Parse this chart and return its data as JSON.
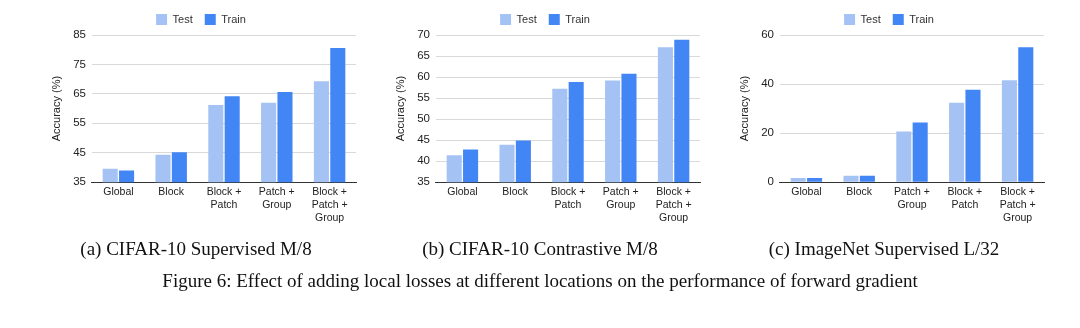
{
  "chart_data": [
    {
      "type": "bar",
      "ylabel": "Accuracy (%)",
      "categories": [
        "Global",
        "Block",
        "Block + Patch",
        "Patch + Group",
        "Block + Patch + Group"
      ],
      "series": [
        {
          "name": "Test",
          "color": "#a4c2f4",
          "values": [
            39.6,
            44.3,
            61.2,
            62.0,
            69.3
          ]
        },
        {
          "name": "Train",
          "color": "#4285f4",
          "values": [
            39.0,
            45.2,
            64.2,
            65.6,
            80.6
          ]
        }
      ],
      "ylim": [
        35,
        85
      ],
      "yticks": [
        35,
        45,
        55,
        65,
        75,
        85
      ],
      "grid": "y",
      "legend": "top",
      "annotations": [
        "(a) CIFAR-10 Supervised M/8"
      ]
    },
    {
      "type": "bar",
      "ylabel": "Accuracy (%)",
      "categories": [
        "Global",
        "Block",
        "Block + Patch",
        "Patch + Group",
        "Block + Patch + Group"
      ],
      "series": [
        {
          "name": "Test",
          "color": "#a4c2f4",
          "values": [
            41.4,
            43.9,
            57.2,
            59.2,
            67.1
          ]
        },
        {
          "name": "Train",
          "color": "#4285f4",
          "values": [
            42.8,
            44.9,
            58.8,
            60.8,
            68.9
          ]
        }
      ],
      "ylim": [
        35,
        70
      ],
      "yticks": [
        35,
        40,
        45,
        50,
        55,
        60,
        65,
        70
      ],
      "grid": "y",
      "legend": "top",
      "annotations": [
        "(b) CIFAR-10 Contrastive M/8"
      ]
    },
    {
      "type": "bar",
      "ylabel": "Accuracy (%)",
      "categories": [
        "Global",
        "Block",
        "Patch + Group",
        "Block + Patch",
        "Block + Patch + Group"
      ],
      "series": [
        {
          "name": "Test",
          "color": "#a4c2f4",
          "values": [
            1.7,
            2.6,
            20.7,
            32.4,
            41.6
          ]
        },
        {
          "name": "Train",
          "color": "#4285f4",
          "values": [
            1.7,
            2.6,
            24.3,
            37.7,
            55.0
          ]
        }
      ],
      "ylim": [
        0,
        60
      ],
      "yticks": [
        0,
        20,
        40,
        60
      ],
      "grid": "y",
      "legend": "top",
      "annotations": [
        "(c) ImageNet Supervised L/32",
        "Figure 6: Effect of adding local losses at different locations on the performance of forward gradient"
      ]
    }
  ]
}
